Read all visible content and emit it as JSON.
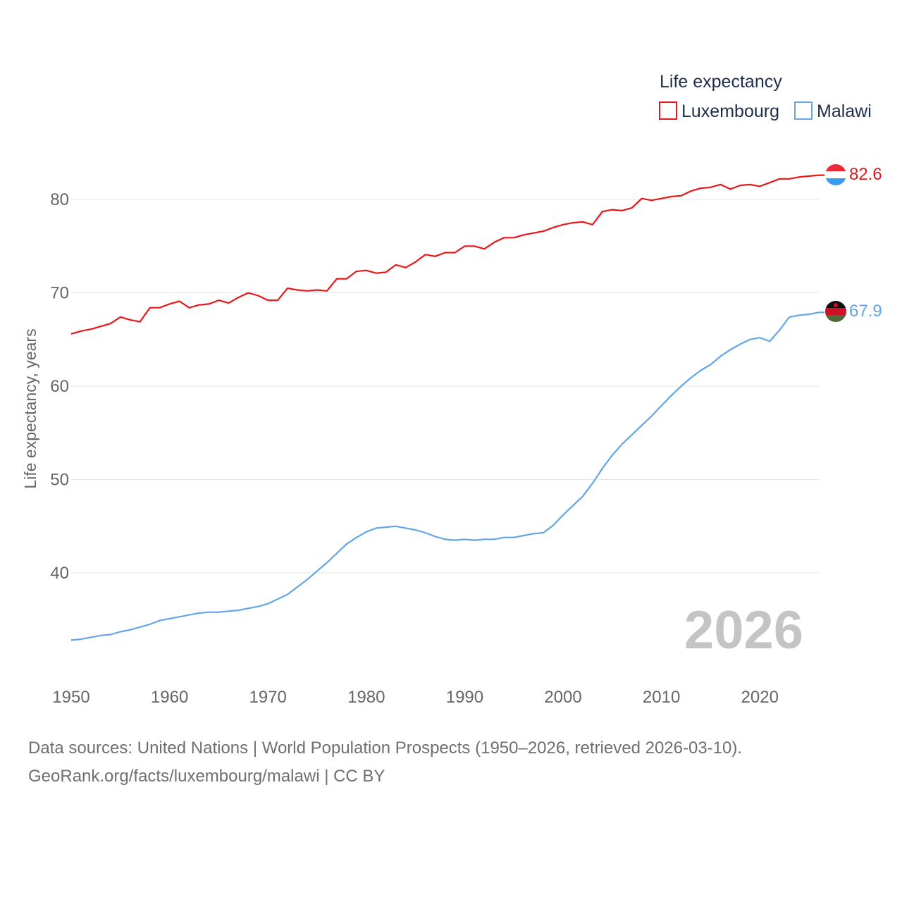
{
  "chart_data": {
    "type": "line",
    "ylabel": "Life expectancy, years",
    "xlabel": "",
    "legend_title": "Life expectancy",
    "legend_position": "top-right",
    "xlim": [
      1950,
      2026
    ],
    "ylim": [
      30,
      86
    ],
    "x_ticks": [
      1950,
      1960,
      1970,
      1980,
      1990,
      2000,
      2010,
      2020
    ],
    "y_ticks": [
      40,
      50,
      60,
      70,
      80
    ],
    "grid": true,
    "current_year_label": "2026",
    "x": [
      1950,
      1951,
      1952,
      1953,
      1954,
      1955,
      1956,
      1957,
      1958,
      1959,
      1960,
      1961,
      1962,
      1963,
      1964,
      1965,
      1966,
      1967,
      1968,
      1969,
      1970,
      1971,
      1972,
      1973,
      1974,
      1975,
      1976,
      1977,
      1978,
      1979,
      1980,
      1981,
      1982,
      1983,
      1984,
      1985,
      1986,
      1987,
      1988,
      1989,
      1990,
      1991,
      1992,
      1993,
      1994,
      1995,
      1996,
      1997,
      1998,
      1999,
      2000,
      2001,
      2002,
      2003,
      2004,
      2005,
      2006,
      2007,
      2008,
      2009,
      2010,
      2011,
      2012,
      2013,
      2014,
      2015,
      2016,
      2017,
      2018,
      2019,
      2020,
      2021,
      2022,
      2023,
      2024,
      2025,
      2026
    ],
    "series": [
      {
        "name": "Luxembourg",
        "color": "#e8161b",
        "end_label": "82.6",
        "flag": "luxembourg-flag",
        "values": [
          65.6,
          65.9,
          66.1,
          66.4,
          66.7,
          67.4,
          67.1,
          66.9,
          68.4,
          68.4,
          68.8,
          69.1,
          68.4,
          68.7,
          68.8,
          69.2,
          68.9,
          69.5,
          70.0,
          69.7,
          69.2,
          69.2,
          70.5,
          70.3,
          70.2,
          70.3,
          70.2,
          71.5,
          71.5,
          72.3,
          72.4,
          72.1,
          72.2,
          73.0,
          72.7,
          73.3,
          74.1,
          73.9,
          74.3,
          74.3,
          75.0,
          75.0,
          74.7,
          75.4,
          75.9,
          75.9,
          76.2,
          76.4,
          76.6,
          77.0,
          77.3,
          77.5,
          77.6,
          77.3,
          78.7,
          78.9,
          78.8,
          79.1,
          80.1,
          79.9,
          80.1,
          80.3,
          80.4,
          80.9,
          81.2,
          81.3,
          81.6,
          81.1,
          81.5,
          81.6,
          81.4,
          81.8,
          82.2,
          82.2,
          82.4,
          82.5,
          82.6
        ]
      },
      {
        "name": "Malawi",
        "color": "#63a5e6",
        "end_label": "67.9",
        "flag": "malawi-flag",
        "values": [
          32.8,
          32.9,
          33.1,
          33.3,
          33.4,
          33.7,
          33.9,
          34.2,
          34.5,
          34.9,
          35.1,
          35.3,
          35.5,
          35.7,
          35.8,
          35.8,
          35.9,
          36.0,
          36.2,
          36.4,
          36.7,
          37.2,
          37.7,
          38.5,
          39.3,
          40.2,
          41.1,
          42.1,
          43.1,
          43.8,
          44.4,
          44.8,
          44.9,
          45.0,
          44.8,
          44.6,
          44.3,
          43.9,
          43.6,
          43.5,
          43.6,
          43.5,
          43.6,
          43.6,
          43.8,
          43.8,
          44.0,
          44.2,
          44.3,
          45.1,
          46.2,
          47.2,
          48.2,
          49.6,
          51.2,
          52.6,
          53.8,
          54.8,
          55.8,
          56.8,
          57.9,
          59.0,
          60.0,
          60.9,
          61.7,
          62.3,
          63.2,
          63.9,
          64.5,
          65.0,
          65.2,
          64.8,
          66.0,
          67.4,
          67.6,
          67.7,
          67.9
        ]
      }
    ]
  },
  "footer": {
    "source_line": "Data sources: United Nations | World Population Prospects (1950–2026, retrieved 2026-03-10).",
    "credit_line": "GeoRank.org/facts/luxembourg/malawi | CC BY"
  }
}
